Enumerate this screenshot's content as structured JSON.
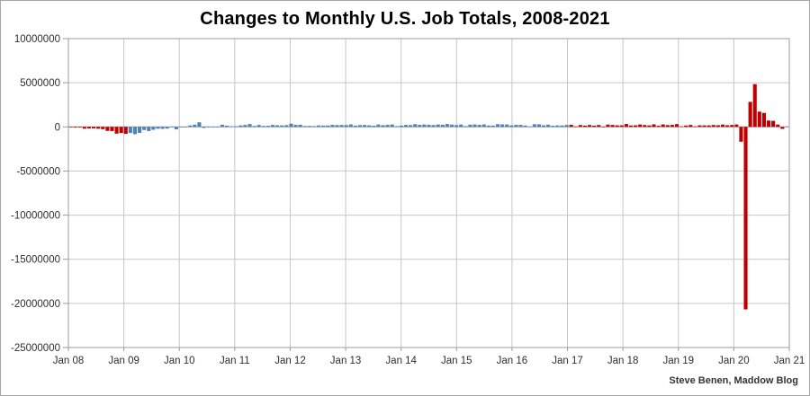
{
  "chart_data": {
    "type": "bar",
    "title": "Changes to Monthly U.S. Job Totals, 2008-2021",
    "source": "Steve Benen, Maddow Blog",
    "ylabel": "",
    "xlabel": "",
    "ylim": [
      -25000000,
      10000000
    ],
    "grid": true,
    "legend": false,
    "y_tick_labels": [
      "10000000",
      "5000000",
      "0",
      "-5000000",
      "-10000000",
      "-15000000",
      "-20000000",
      "-25000000"
    ],
    "x_tick_labels": [
      "Jan 08",
      "Jan 09",
      "Jan 10",
      "Jan 11",
      "Jan 12",
      "Jan 13",
      "Jan 14",
      "Jan 15",
      "Jan 16",
      "Jan 17",
      "Jan 18",
      "Jan 19",
      "Jan 20",
      "Jan 21"
    ],
    "start_month": "Jan 2008",
    "frequency": "monthly",
    "values": [
      -17000,
      -83000,
      -76000,
      -210000,
      -182000,
      -172000,
      -210000,
      -259000,
      -452000,
      -474000,
      -765000,
      -697000,
      -791000,
      -701000,
      -826000,
      -684000,
      -354000,
      -467000,
      -327000,
      -216000,
      -227000,
      -198000,
      -6000,
      -283000,
      -40000,
      -35000,
      156000,
      251000,
      516000,
      -122000,
      -61000,
      -42000,
      -57000,
      241000,
      137000,
      71000,
      70000,
      168000,
      212000,
      322000,
      102000,
      217000,
      106000,
      122000,
      221000,
      183000,
      164000,
      196000,
      360000,
      226000,
      243000,
      96000,
      110000,
      88000,
      160000,
      150000,
      161000,
      225000,
      203000,
      214000,
      197000,
      280000,
      141000,
      199000,
      219000,
      172000,
      130000,
      269000,
      185000,
      225000,
      274000,
      84000,
      144000,
      222000,
      203000,
      304000,
      229000,
      267000,
      243000,
      203000,
      271000,
      243000,
      321000,
      256000,
      201000,
      266000,
      84000,
      251000,
      273000,
      228000,
      277000,
      150000,
      145000,
      307000,
      280000,
      271000,
      168000,
      233000,
      225000,
      153000,
      43000,
      297000,
      291000,
      176000,
      249000,
      124000,
      164000,
      155000,
      216000,
      232000,
      50000,
      207000,
      145000,
      210000,
      139000,
      208000,
      18000,
      261000,
      216000,
      175000,
      176000,
      324000,
      155000,
      175000,
      268000,
      208000,
      165000,
      286000,
      119000,
      277000,
      196000,
      222000,
      312000,
      56000,
      153000,
      216000,
      62000,
      178000,
      166000,
      168000,
      208000,
      185000,
      261000,
      184000,
      214000,
      275000,
      -1683000,
      -20679000,
      2833000,
      4846000,
      1726000,
      1583000,
      716000,
      680000,
      264000,
      -227000,
      49000
    ],
    "colors": {
      "republican": "#c00000",
      "democrat": "#4f81bd",
      "gridline": "#c6c6c6",
      "axis": "#9b9b9b",
      "tick_label": "#2e2e2e"
    },
    "color_segments": [
      {
        "start": 0,
        "end": 12,
        "party": "republican"
      },
      {
        "start": 13,
        "end": 108,
        "party": "democrat"
      },
      {
        "start": 109,
        "end": 155,
        "party": "republican"
      },
      {
        "start": 156,
        "end": 156,
        "party": "democrat"
      }
    ]
  }
}
